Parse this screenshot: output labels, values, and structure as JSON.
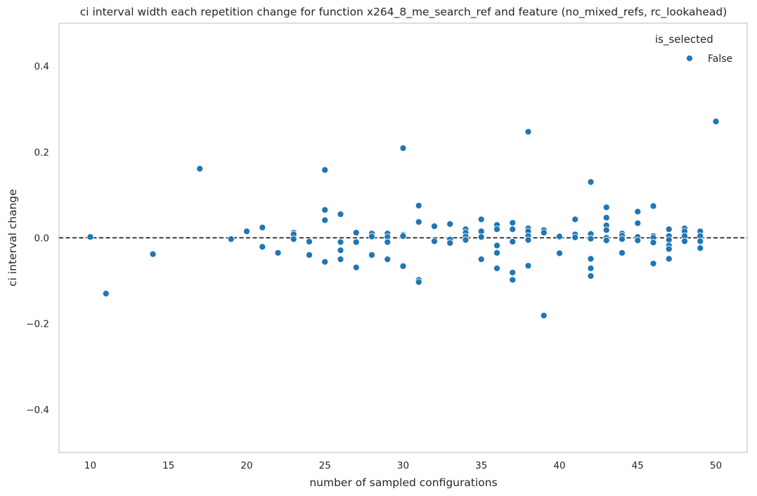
{
  "chart_data": {
    "type": "scatter",
    "title": "ci interval width each repetition change for function x264_8_me_search_ref and feature (no_mixed_refs, rc_lookahead)",
    "xlabel": "number of sampled configurations",
    "ylabel": "ci interval change",
    "xlim": [
      8,
      52
    ],
    "ylim": [
      -0.5,
      0.5
    ],
    "xticks": [
      10,
      15,
      20,
      25,
      30,
      35,
      40,
      45,
      50
    ],
    "yticks": [
      -0.4,
      -0.2,
      0.0,
      0.2,
      0.4
    ],
    "xtick_labels": [
      "10",
      "15",
      "20",
      "25",
      "30",
      "35",
      "40",
      "45",
      "50"
    ],
    "ytick_labels": [
      "−0.4",
      "−0.2",
      "0.0",
      "0.2",
      "0.4"
    ],
    "grid": false,
    "reference_line": {
      "y": 0.0,
      "style": "dashed",
      "color": "#000000"
    },
    "legend": {
      "title": "is_selected",
      "placement": "top-right"
    },
    "series": [
      {
        "name": "False",
        "color": "#1f77b4",
        "points": [
          [
            10,
            0.002
          ],
          [
            11,
            -0.13
          ],
          [
            14,
            -0.038
          ],
          [
            17,
            0.161
          ],
          [
            19,
            -0.003
          ],
          [
            20,
            0.015
          ],
          [
            21,
            0.024
          ],
          [
            21,
            -0.021
          ],
          [
            22,
            -0.035
          ],
          [
            23,
            0.012
          ],
          [
            23,
            0.008
          ],
          [
            23,
            -0.003
          ],
          [
            24,
            -0.009
          ],
          [
            24,
            -0.04
          ],
          [
            25,
            0.158
          ],
          [
            25,
            0.065
          ],
          [
            25,
            0.041
          ],
          [
            25,
            -0.056
          ],
          [
            26,
            0.055
          ],
          [
            26,
            -0.01
          ],
          [
            26,
            -0.029
          ],
          [
            26,
            -0.05
          ],
          [
            27,
            0.012
          ],
          [
            27,
            -0.01
          ],
          [
            27,
            -0.069
          ],
          [
            28,
            0.01
          ],
          [
            28,
            0.003
          ],
          [
            28,
            -0.04
          ],
          [
            29,
            0.01
          ],
          [
            29,
            0.002
          ],
          [
            29,
            -0.01
          ],
          [
            29,
            -0.05
          ],
          [
            30,
            0.209
          ],
          [
            30,
            0.007
          ],
          [
            30,
            0.004
          ],
          [
            30,
            -0.066
          ],
          [
            31,
            0.075
          ],
          [
            31,
            0.037
          ],
          [
            31,
            -0.098
          ],
          [
            31,
            -0.103
          ],
          [
            32,
            0.027
          ],
          [
            32,
            -0.008
          ],
          [
            33,
            0.032
          ],
          [
            33,
            -0.004
          ],
          [
            33,
            -0.012
          ],
          [
            34,
            0.02
          ],
          [
            34,
            0.012
          ],
          [
            34,
            0.003
          ],
          [
            34,
            -0.005
          ],
          [
            35,
            0.043
          ],
          [
            35,
            0.015
          ],
          [
            35,
            0.002
          ],
          [
            35,
            -0.05
          ],
          [
            36,
            0.03
          ],
          [
            36,
            0.02
          ],
          [
            36,
            -0.018
          ],
          [
            36,
            -0.035
          ],
          [
            36,
            -0.071
          ],
          [
            37,
            0.035
          ],
          [
            37,
            0.02
          ],
          [
            37,
            -0.009
          ],
          [
            37,
            -0.081
          ],
          [
            37,
            -0.098
          ],
          [
            38,
            0.247
          ],
          [
            38,
            0.022
          ],
          [
            38,
            0.015
          ],
          [
            38,
            0.004
          ],
          [
            38,
            -0.005
          ],
          [
            38,
            -0.065
          ],
          [
            39,
            0.018
          ],
          [
            39,
            0.012
          ],
          [
            39,
            -0.181
          ],
          [
            40,
            0.003
          ],
          [
            40,
            -0.036
          ],
          [
            41,
            0.043
          ],
          [
            41,
            0.008
          ],
          [
            41,
            0.001
          ],
          [
            42,
            0.13
          ],
          [
            42,
            0.009
          ],
          [
            42,
            -0.002
          ],
          [
            42,
            -0.049
          ],
          [
            42,
            -0.071
          ],
          [
            42,
            -0.089
          ],
          [
            43,
            0.071
          ],
          [
            43,
            0.047
          ],
          [
            43,
            0.029
          ],
          [
            43,
            0.018
          ],
          [
            43,
            0.0
          ],
          [
            43,
            -0.006
          ],
          [
            44,
            0.01
          ],
          [
            44,
            0.005
          ],
          [
            44,
            -0.003
          ],
          [
            44,
            -0.035
          ],
          [
            45,
            0.061
          ],
          [
            45,
            0.034
          ],
          [
            45,
            0.002
          ],
          [
            45,
            -0.006
          ],
          [
            46,
            0.074
          ],
          [
            46,
            0.004
          ],
          [
            46,
            0.0
          ],
          [
            46,
            -0.011
          ],
          [
            46,
            -0.06
          ],
          [
            47,
            0.02
          ],
          [
            47,
            0.004
          ],
          [
            47,
            -0.005
          ],
          [
            47,
            -0.018
          ],
          [
            47,
            -0.026
          ],
          [
            47,
            -0.049
          ],
          [
            48,
            0.022
          ],
          [
            48,
            0.015
          ],
          [
            48,
            0.004
          ],
          [
            48,
            -0.008
          ],
          [
            49,
            0.015
          ],
          [
            49,
            0.004
          ],
          [
            49,
            -0.008
          ],
          [
            49,
            -0.024
          ],
          [
            50,
            0.271
          ]
        ]
      }
    ]
  }
}
